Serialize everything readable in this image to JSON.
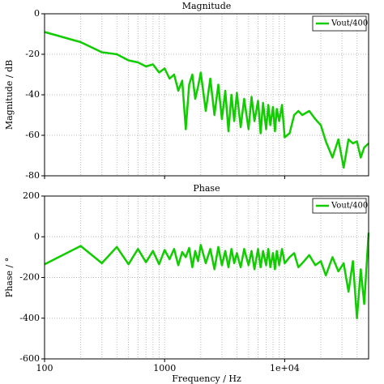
{
  "chart_data": [
    {
      "type": "line",
      "title": "Magnitude",
      "ylabel": "Magnitude / dB",
      "xscale": "log",
      "grid": true,
      "legend": "upper right",
      "x": [
        100,
        200,
        300,
        400,
        500,
        600,
        700,
        800,
        900,
        1000,
        1100,
        1200,
        1300,
        1400,
        1500,
        1600,
        1700,
        1800,
        1900,
        2000,
        2200,
        2400,
        2600,
        2800,
        3000,
        3200,
        3400,
        3600,
        3800,
        4000,
        4300,
        4600,
        5000,
        5300,
        5600,
        6000,
        6300,
        6600,
        7000,
        7300,
        7600,
        8000,
        8300,
        8600,
        9000,
        9500,
        10000,
        11000,
        12000,
        13000,
        14000,
        16000,
        18000,
        20000,
        22000,
        25000,
        28000,
        31000,
        34000,
        37000,
        40000,
        43000,
        46000,
        50000
      ],
      "series": [
        {
          "name": "Vout/400",
          "color": "#11cc00",
          "values": [
            -9,
            -14,
            -19,
            -20,
            -23,
            -24,
            -26,
            -25,
            -29,
            -27,
            -32,
            -30,
            -38,
            -33,
            -57,
            -35,
            -30,
            -42,
            -36,
            -29,
            -48,
            -32,
            -50,
            -35,
            -52,
            -38,
            -58,
            -40,
            -53,
            -39,
            -56,
            -42,
            -57,
            -41,
            -53,
            -43,
            -59,
            -44,
            -57,
            -45,
            -55,
            -46,
            -58,
            -47,
            -53,
            -45,
            -61,
            -59,
            -50,
            -48,
            -50,
            -48,
            -52,
            -55,
            -63,
            -71,
            -62,
            -76,
            -62,
            -64,
            -63,
            -71,
            -66,
            -64
          ]
        }
      ],
      "xlim": [
        100,
        50000
      ],
      "xticks": [
        100,
        1000,
        {
          "value": 10000,
          "label": "1e+04"
        }
      ],
      "xminor_ticks": [
        200,
        300,
        400,
        500,
        600,
        700,
        800,
        900,
        2000,
        3000,
        4000,
        5000,
        6000,
        7000,
        8000,
        9000,
        20000,
        30000,
        40000
      ],
      "ylim": [
        -80,
        0
      ],
      "yticks": [
        0,
        -20,
        -40,
        -60,
        -80
      ]
    },
    {
      "type": "line",
      "title": "Phase",
      "ylabel": "Phase / °",
      "xlabel": "Frequency / Hz",
      "xscale": "log",
      "grid": true,
      "legend": "upper right",
      "x": [
        100,
        200,
        300,
        400,
        500,
        600,
        700,
        800,
        900,
        1000,
        1100,
        1200,
        1300,
        1400,
        1500,
        1600,
        1700,
        1800,
        1900,
        2000,
        2200,
        2400,
        2600,
        2800,
        3000,
        3200,
        3400,
        3600,
        3800,
        4000,
        4300,
        4600,
        5000,
        5300,
        5600,
        6000,
        6300,
        6600,
        7000,
        7300,
        7600,
        8000,
        8300,
        8600,
        9000,
        9500,
        10000,
        11000,
        12000,
        13000,
        14000,
        16000,
        18000,
        20000,
        22000,
        25000,
        28000,
        31000,
        34000,
        37000,
        40000,
        43000,
        46000,
        50000
      ],
      "series": [
        {
          "name": "Vout/400",
          "color": "#11cc00",
          "values": [
            -135,
            -45,
            -130,
            -50,
            -135,
            -60,
            -125,
            -70,
            -135,
            -65,
            -110,
            -60,
            -140,
            -75,
            -100,
            -55,
            -150,
            -70,
            -120,
            -40,
            -130,
            -60,
            -160,
            -50,
            -140,
            -70,
            -150,
            -60,
            -130,
            -80,
            -150,
            -60,
            -140,
            -70,
            -160,
            -60,
            -150,
            -70,
            -140,
            -60,
            -150,
            -80,
            -160,
            -70,
            -140,
            -60,
            -130,
            -100,
            -80,
            -150,
            -130,
            -90,
            -140,
            -120,
            -190,
            -100,
            -170,
            -130,
            -270,
            -120,
            -400,
            -160,
            -330,
            20
          ]
        }
      ],
      "xlim": [
        100,
        50000
      ],
      "xticks": [
        100,
        1000,
        {
          "value": 10000,
          "label": "1e+04"
        }
      ],
      "xminor_ticks": [
        200,
        300,
        400,
        500,
        600,
        700,
        800,
        900,
        2000,
        3000,
        4000,
        5000,
        6000,
        7000,
        8000,
        9000,
        20000,
        30000,
        40000
      ],
      "ylim": [
        -600,
        200
      ],
      "yticks": [
        200,
        0,
        -200,
        -400,
        -600
      ]
    }
  ]
}
